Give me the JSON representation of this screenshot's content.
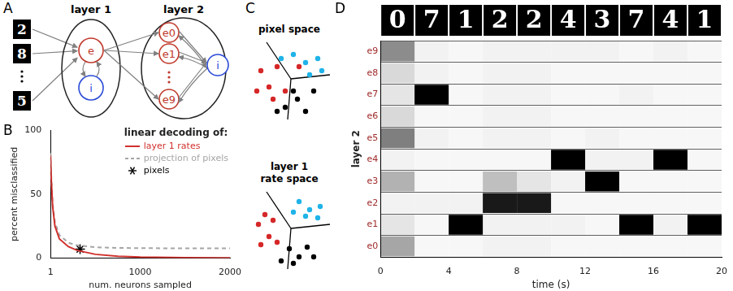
{
  "panel_a": {
    "label": "A",
    "inputs": [
      "2",
      "8",
      "5"
    ],
    "layers": [
      {
        "title": "layer 1",
        "excitatory": [
          "e"
        ],
        "inhibitory": "i"
      },
      {
        "title": "layer 2",
        "excitatory": [
          "e0",
          "e1",
          "e9"
        ],
        "inhibitory": "i"
      }
    ]
  },
  "panel_c": {
    "label": "C",
    "spaces": [
      [
        "pixel space"
      ],
      [
        "layer 1",
        "rate space"
      ]
    ]
  },
  "chart_data": [
    {
      "label": "B",
      "type": "line",
      "legend_title": "linear decoding of:",
      "legend": "top right",
      "x_label": "num. neurons sampled",
      "y_label": "percent misclassified",
      "xlim": [
        1,
        2000
      ],
      "xticks": [
        1,
        1000,
        2000
      ],
      "ylim": [
        0,
        100
      ],
      "yticks": [
        0,
        50,
        100
      ],
      "series": [
        {
          "name": "layer 1 rates",
          "color": "#d0312d",
          "type": "line",
          "line_style": "solid",
          "x": [
            1,
            10,
            25,
            50,
            100,
            200,
            300,
            500,
            750,
            1000,
            1500,
            2000
          ],
          "values": [
            80,
            60,
            40,
            25,
            15,
            9,
            6,
            3,
            1.5,
            0.8,
            0.4,
            0.3
          ]
        },
        {
          "name": "projection of pixels",
          "color": "#a6a6a6",
          "type": "line",
          "line_style": "dashed",
          "x": [
            1,
            10,
            25,
            50,
            100,
            200,
            300,
            500,
            750,
            1000,
            1500,
            2000
          ],
          "values": [
            82,
            62,
            42,
            28,
            18,
            12,
            10,
            8.5,
            8,
            7.8,
            7.7,
            7.7
          ]
        },
        {
          "name": "pixels",
          "color": "#000000",
          "type": "scatter",
          "marker": "star",
          "x": [
            330
          ],
          "values": [
            7
          ]
        }
      ]
    },
    {
      "label": "D",
      "type": "raster",
      "x_label": "time (s)",
      "y_label": "layer 2",
      "xlim": [
        0,
        20
      ],
      "xticks": [
        0,
        4,
        8,
        12,
        16,
        20
      ],
      "grid": true,
      "color": "#000000",
      "categories": [
        "e9",
        "e8",
        "e7",
        "e6",
        "e5",
        "e4",
        "e3",
        "e2",
        "e1",
        "e0"
      ],
      "stimuli": [
        {
          "digit": "0",
          "start": 0,
          "end": 2
        },
        {
          "digit": "7",
          "start": 2,
          "end": 4
        },
        {
          "digit": "1",
          "start": 4,
          "end": 6
        },
        {
          "digit": "2",
          "start": 6,
          "end": 8
        },
        {
          "digit": "2",
          "start": 8,
          "end": 10
        },
        {
          "digit": "4",
          "start": 10,
          "end": 12
        },
        {
          "digit": "3",
          "start": 12,
          "end": 14
        },
        {
          "digit": "7",
          "start": 14,
          "end": 16
        },
        {
          "digit": "4",
          "start": 16,
          "end": 18
        },
        {
          "digit": "1",
          "start": 18,
          "end": 20
        }
      ],
      "cells": [
        [
          0.45,
          0.05,
          0.03,
          0.05,
          0.05,
          0.05,
          0.05,
          0.03,
          0.05,
          0.03
        ],
        [
          0.15,
          0.05,
          0.03,
          0.05,
          0.05,
          0.03,
          0.03,
          0.03,
          0.03,
          0.03
        ],
        [
          0.1,
          1,
          0.03,
          0.05,
          0.05,
          0.03,
          0.03,
          0.05,
          0.03,
          0.03
        ],
        [
          0.15,
          0.03,
          0.03,
          0.05,
          0.05,
          0.03,
          0.03,
          0.03,
          0.03,
          0.03
        ],
        [
          0.5,
          0.05,
          0.03,
          0.05,
          0.05,
          0.03,
          0.05,
          0.03,
          0.03,
          0.03
        ],
        [
          0.05,
          0.03,
          0.03,
          0.03,
          0.03,
          1,
          0.05,
          0.05,
          1,
          0.03
        ],
        [
          0.3,
          0.03,
          0.03,
          0.25,
          0.1,
          0.05,
          1,
          0.03,
          0.03,
          0.03
        ],
        [
          0.05,
          0.05,
          0.05,
          0.9,
          0.9,
          0.03,
          0.03,
          0.03,
          0.03,
          0.03
        ],
        [
          0.1,
          0.03,
          1,
          0.05,
          0.05,
          0.05,
          0.03,
          1,
          0.05,
          1
        ],
        [
          0.35,
          0.03,
          0.03,
          0.05,
          0.05,
          0.03,
          0.03,
          0.03,
          0.03,
          0.03
        ]
      ]
    }
  ]
}
